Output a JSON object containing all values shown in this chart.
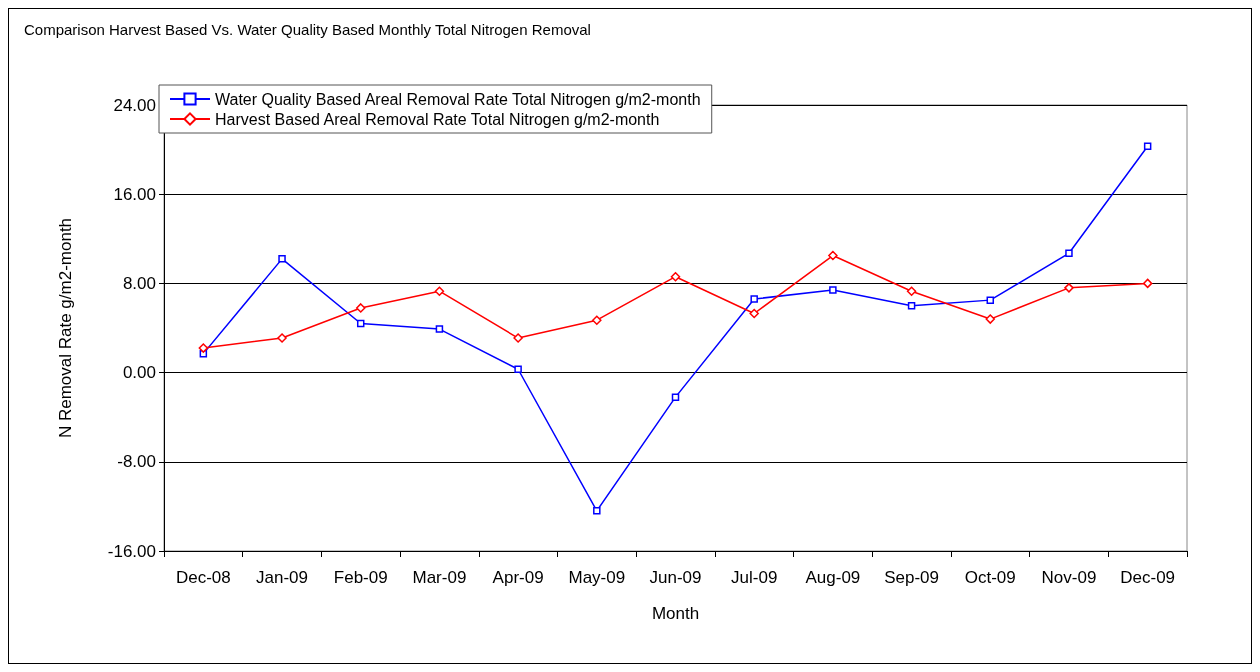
{
  "chart_data": {
    "type": "line",
    "title": "Comparison Harvest Based Vs. Water Quality Based Monthly Total Nitrogen Removal",
    "xlabel": "Month",
    "ylabel": "N Removal Rate g/m2-month",
    "categories": [
      "Dec-08",
      "Jan-09",
      "Feb-09",
      "Mar-09",
      "Apr-09",
      "May-09",
      "Jun-09",
      "Jul-09",
      "Aug-09",
      "Sep-09",
      "Oct-09",
      "Nov-09",
      "Dec-09"
    ],
    "series": [
      {
        "name": "Water Quality Based Areal Removal Rate Total Nitrogen g/m2-month",
        "color": "#0000ff",
        "marker": "square",
        "values": [
          1.7,
          10.2,
          4.4,
          3.9,
          0.3,
          -12.4,
          -2.2,
          6.6,
          7.4,
          6.0,
          6.5,
          10.7,
          20.3
        ]
      },
      {
        "name": "Harvest Based Areal Removal Rate Total Nitrogen g/m2-month",
        "color": "#ff0000",
        "marker": "diamond",
        "values": [
          2.2,
          3.1,
          5.8,
          7.3,
          3.1,
          4.7,
          8.6,
          5.3,
          10.5,
          7.3,
          4.8,
          7.6,
          8.0
        ]
      }
    ],
    "ylim": [
      -16,
      24
    ],
    "yticks": [
      {
        "value": -16,
        "label": "-16.00"
      },
      {
        "value": -8,
        "label": "-8.00"
      },
      {
        "value": 0,
        "label": "0.00"
      },
      {
        "value": 8,
        "label": "8.00"
      },
      {
        "value": 16,
        "label": "16.00"
      },
      {
        "value": 24,
        "label": "24.00"
      }
    ],
    "grid": "y",
    "legend": "top left",
    "line_style": "solid"
  }
}
